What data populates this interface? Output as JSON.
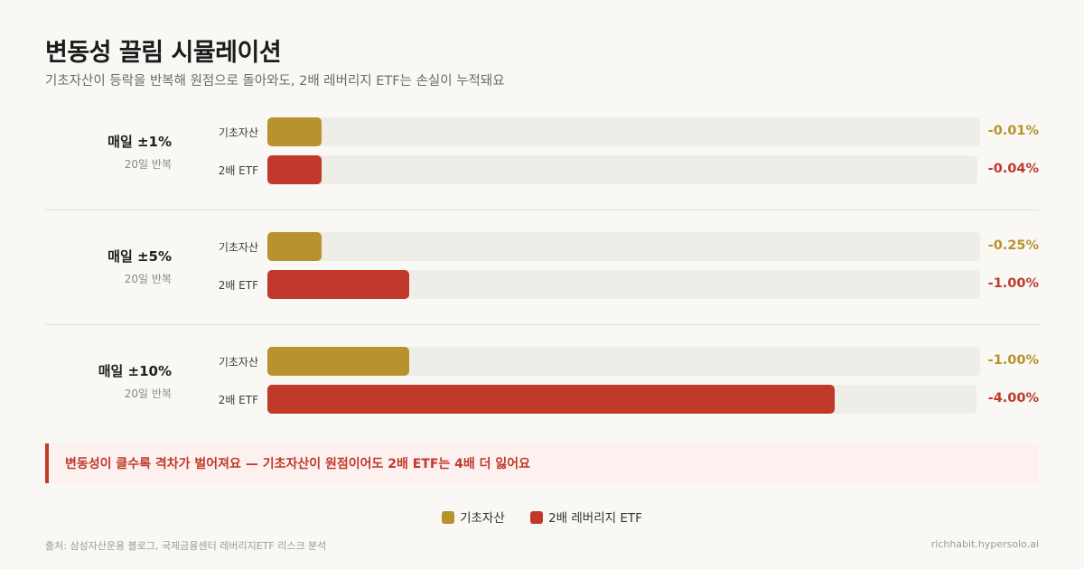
{
  "title": "변동성 끌림 시뮬레이션",
  "subtitle": "기초자산이 등락을 반복해 원점으로 돌아와도, 2배 레버리지 ETF는 손실이 누적돼요",
  "chart_data": {
    "type": "bar",
    "orientation": "horizontal",
    "categories": [
      "매일 ±1%",
      "매일 ±5%",
      "매일 ±10%"
    ],
    "category_sublabels": [
      "20일 반복",
      "20일 반복",
      "20일 반복"
    ],
    "series": [
      {
        "name": "기초자산",
        "bar_label": "기초자산",
        "values": [
          -0.01,
          -0.25,
          -1.0
        ],
        "value_labels": [
          "-0.01%",
          "-0.25%",
          "-1.00%"
        ],
        "color": "#b8922e"
      },
      {
        "name": "2배 레버리지 ETF",
        "bar_label": "2배 ETF",
        "values": [
          -0.04,
          -1.0,
          -4.0
        ],
        "value_labels": [
          "-0.04%",
          "-1.00%",
          "-4.00%"
        ],
        "color": "#c0392b"
      }
    ],
    "legend": "bottom-center"
  },
  "callout": "변동성이 클수록 격차가 벌어져요 — 기초자산이 원점이어도 2배 ETF는 4배 더 잃어요",
  "source": "출처: 삼성자산운용 블로그, 국제금융센터 레버리지ETF 리스크 분석",
  "site": "richhabit.hypersolo.ai",
  "colors": {
    "base": "#b8922e",
    "etf": "#c0392b",
    "track": "#eeede7",
    "background": "#f9f8f5"
  }
}
